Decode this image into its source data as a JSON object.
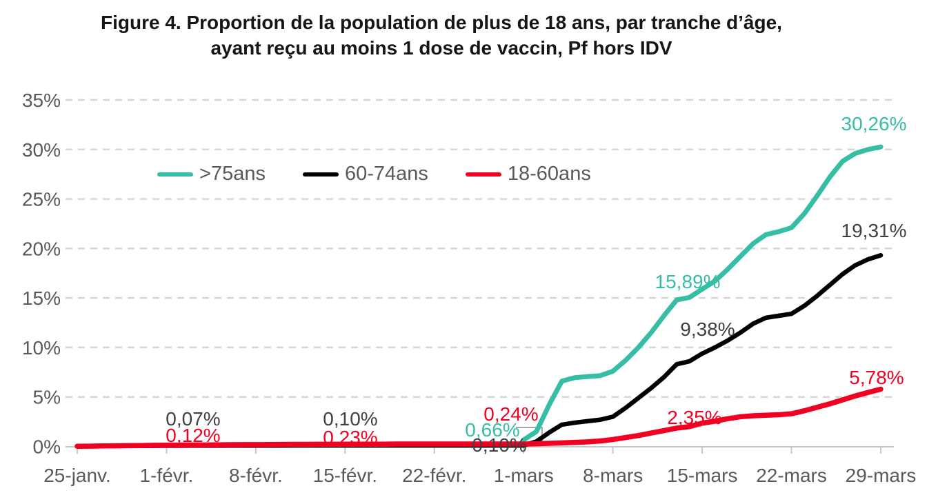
{
  "figure": {
    "title_line1": "Figure 4. Proportion de la population de plus de 18 ans, par tranche d’âge,",
    "title_line2": "ayant reçu au moins 1 dose de vaccin, Pf hors IDV"
  },
  "colors": {
    "teal": "#35BEA4",
    "black": "#000000",
    "red": "#F20021",
    "dark_label": "#404040",
    "axis_text": "#595959",
    "gridline": "#D6D6D6",
    "axis_line": "#C6C6C6",
    "leader_line": "#A6A6A6",
    "background": "#FFFFFF"
  },
  "chart_data": {
    "type": "line",
    "title": "Figure 4. Proportion de la population de plus de 18 ans, par tranche d’âge, ayant reçu au moins 1 dose de vaccin, Pf hors IDV",
    "grid": "horizontal-dashed",
    "legend_position": "inside-top-left",
    "x_axis": {
      "tick_labels": [
        "25-janv.",
        "1-févr.",
        "8-févr.",
        "15-févr.",
        "22-févr.",
        "1-mars",
        "8-mars",
        "15-mars",
        "22-mars",
        "29-mars"
      ],
      "tick_days": [
        0,
        7,
        14,
        21,
        28,
        35,
        42,
        49,
        56,
        63
      ],
      "days_total": 63
    },
    "y_axis": {
      "tick_labels": [
        "0%",
        "5%",
        "10%",
        "15%",
        "20%",
        "25%",
        "30%",
        "35%"
      ],
      "min": 0,
      "max": 35,
      "step": 5,
      "unit": "%"
    },
    "series": [
      {
        "name": ">75ans",
        "color": "#35BEA4",
        "label_color": "#35BEA4",
        "stroke_width": 7,
        "start_day": 35,
        "values": [
          0.66,
          1.5,
          4.2,
          6.6,
          6.95,
          7.05,
          7.15,
          7.6,
          8.7,
          10.0,
          11.5,
          13.2,
          14.8,
          15.05,
          15.89,
          16.7,
          17.9,
          19.2,
          20.5,
          21.4,
          21.7,
          22.1,
          23.5,
          25.3,
          27.2,
          28.8,
          29.6,
          30.0,
          30.26
        ]
      },
      {
        "name": "60-74ans",
        "color": "#000000",
        "label_color": "#404040",
        "stroke_width": 6.5,
        "start_day": 0,
        "values": [
          0.02,
          0.03,
          0.04,
          0.04,
          0.05,
          0.05,
          0.06,
          0.07,
          0.07,
          0.08,
          0.08,
          0.08,
          0.09,
          0.09,
          0.09,
          0.09,
          0.09,
          0.1,
          0.1,
          0.1,
          0.1,
          0.1,
          0.1,
          0.1,
          0.1,
          0.1,
          0.1,
          0.1,
          0.1,
          0.1,
          0.1,
          0.1,
          0.1,
          0.1,
          0.1,
          0.1,
          0.5,
          1.4,
          2.2,
          2.4,
          2.55,
          2.7,
          3.0,
          3.9,
          4.9,
          5.9,
          7.0,
          8.3,
          8.6,
          9.38,
          10.0,
          10.7,
          11.5,
          12.4,
          13.0,
          13.2,
          13.4,
          14.2,
          15.2,
          16.3,
          17.4,
          18.3,
          18.9,
          19.31
        ]
      },
      {
        "name": "18-60ans",
        "color": "#F20021",
        "label_color": "#F20021",
        "stroke_width": 7.5,
        "start_day": 0,
        "values": [
          0.02,
          0.03,
          0.05,
          0.06,
          0.08,
          0.09,
          0.11,
          0.12,
          0.13,
          0.14,
          0.15,
          0.16,
          0.17,
          0.18,
          0.18,
          0.19,
          0.2,
          0.21,
          0.21,
          0.22,
          0.22,
          0.23,
          0.23,
          0.23,
          0.23,
          0.24,
          0.24,
          0.24,
          0.24,
          0.24,
          0.24,
          0.24,
          0.24,
          0.24,
          0.24,
          0.24,
          0.27,
          0.31,
          0.36,
          0.41,
          0.46,
          0.55,
          0.7,
          0.9,
          1.1,
          1.35,
          1.6,
          1.85,
          2.0,
          2.35,
          2.55,
          2.8,
          3.0,
          3.1,
          3.15,
          3.2,
          3.3,
          3.6,
          3.95,
          4.3,
          4.7,
          5.1,
          5.45,
          5.78
        ]
      }
    ],
    "data_labels": [
      {
        "series": 1,
        "text": "0,07%",
        "value": 0.07,
        "day": 7,
        "x": 280,
        "y": 607
      },
      {
        "series": 2,
        "text": "0,12%",
        "value": 0.12,
        "day": 7,
        "x": 280,
        "y": 631
      },
      {
        "series": 1,
        "text": "0,10%",
        "value": 0.1,
        "day": 21,
        "x": 508,
        "y": 607
      },
      {
        "series": 2,
        "text": "0,23%",
        "value": 0.23,
        "day": 21,
        "x": 508,
        "y": 634
      },
      {
        "series": 2,
        "text": "0,24%",
        "value": 0.24,
        "day": 35,
        "x": 741,
        "y": 600
      },
      {
        "series": 0,
        "text": "0,66%",
        "value": 0.66,
        "day": 35,
        "x": 714,
        "y": 623
      },
      {
        "series": 1,
        "text": "0,10%",
        "value": 0.1,
        "day": 35,
        "x": 724,
        "y": 645
      },
      {
        "series": 0,
        "text": "15,89%",
        "value": 15.89,
        "day": 49,
        "x": 997,
        "y": 408
      },
      {
        "series": 1,
        "text": "9,38%",
        "value": 9.38,
        "day": 49,
        "x": 1026,
        "y": 477
      },
      {
        "series": 2,
        "text": "2,35%",
        "value": 2.35,
        "day": 49,
        "x": 1007,
        "y": 605
      },
      {
        "series": 0,
        "text": "30,26%",
        "value": 30.26,
        "day": 63,
        "x": 1267,
        "y": 179
      },
      {
        "series": 1,
        "text": "19,31%",
        "value": 19.31,
        "day": 63,
        "x": 1267,
        "y": 334
      },
      {
        "series": 2,
        "text": "5,78%",
        "value": 5.78,
        "day": 63,
        "x": 1271,
        "y": 547
      }
    ],
    "leader_line_points": [
      [
        748,
        620
      ],
      [
        786,
        620
      ],
      [
        786,
        643
      ]
    ]
  }
}
